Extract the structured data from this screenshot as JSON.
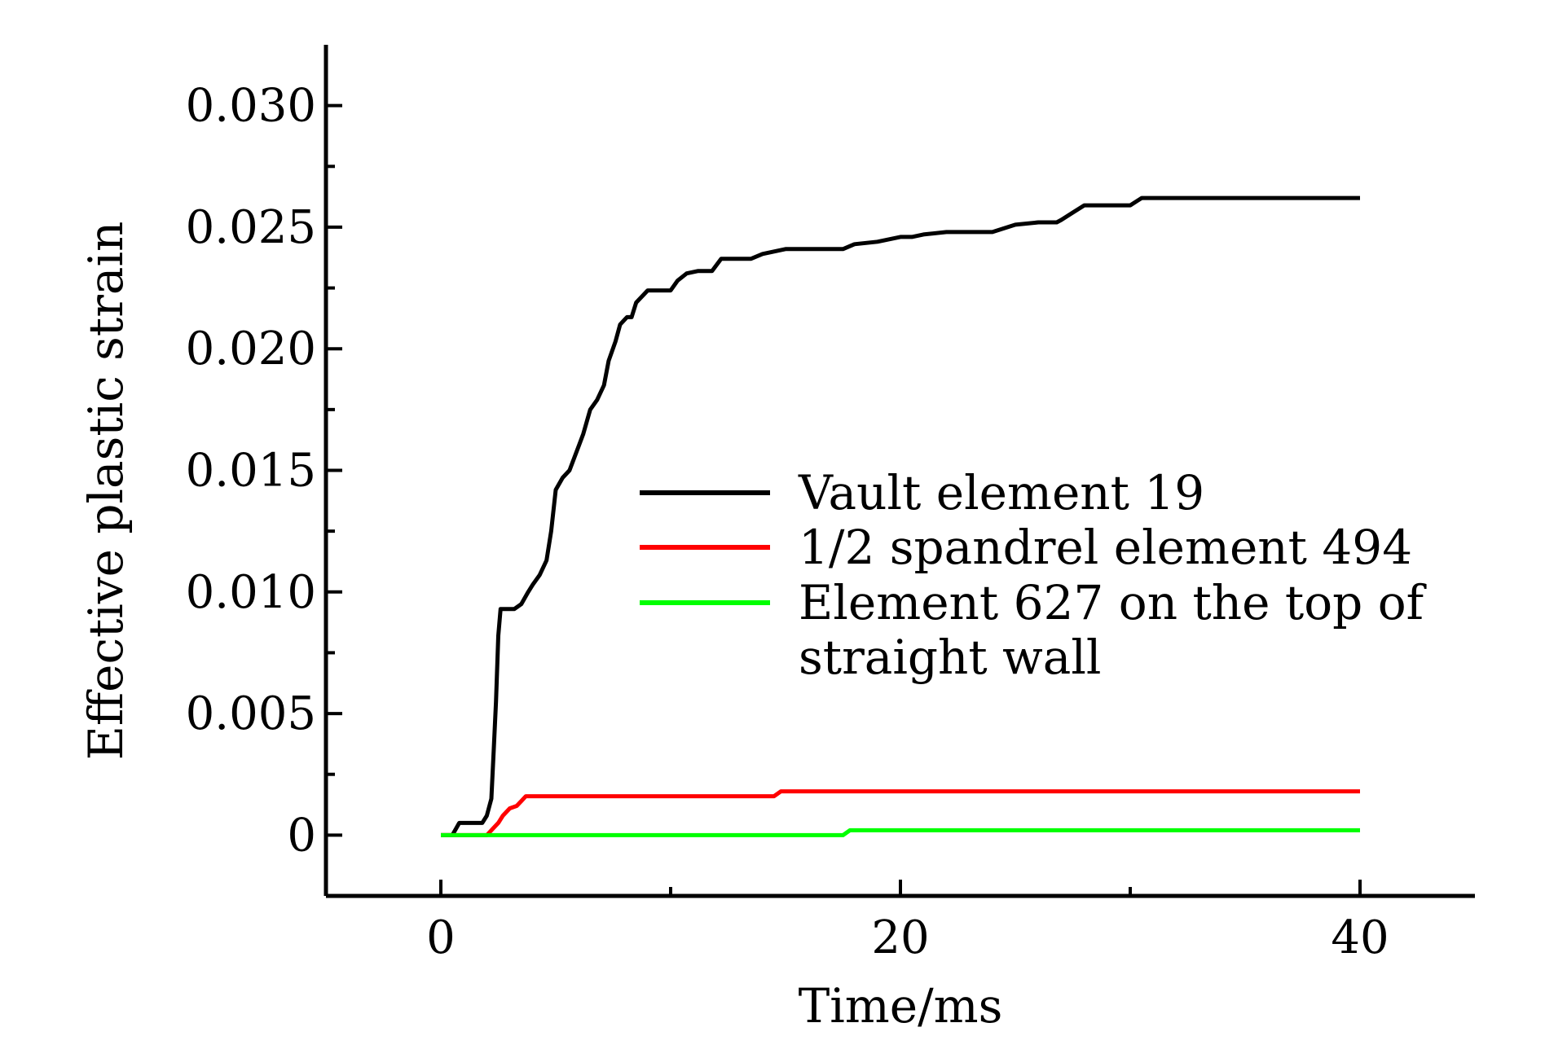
{
  "chart_data": {
    "type": "line",
    "title": "",
    "xlabel": "Time/ms",
    "ylabel": "Effective plastic strain",
    "xlim": [
      -5,
      45
    ],
    "ylim": [
      -0.0025,
      0.0325
    ],
    "xticks": [
      0,
      20,
      40
    ],
    "xtick_labels": [
      "0",
      "20",
      "40"
    ],
    "x_minor_ticks": [
      10,
      30
    ],
    "yticks": [
      0,
      0.005,
      0.01,
      0.015,
      0.02,
      0.025,
      0.03
    ],
    "ytick_labels": [
      "0",
      "0.005",
      "0.010",
      "0.015",
      "0.020",
      "0.025",
      "0.030"
    ],
    "y_minor_ticks": [
      -0.0025,
      0.0025,
      0.0075,
      0.0125,
      0.0175,
      0.0225,
      0.0275
    ],
    "grid": false,
    "legend_position": "center-right",
    "series": [
      {
        "name": "Vault element 19",
        "color": "#000000",
        "x": [
          0,
          0.5,
          0.8,
          1.8,
          2.0,
          2.2,
          2.3,
          2.4,
          2.5,
          2.6,
          2.8,
          3.2,
          3.5,
          3.8,
          4.0,
          4.3,
          4.6,
          4.8,
          5.0,
          5.3,
          5.6,
          6.0,
          6.2,
          6.5,
          6.8,
          7.1,
          7.3,
          7.6,
          7.8,
          8.1,
          8.3,
          8.5,
          9.0,
          10.0,
          10.3,
          10.7,
          11.2,
          11.8,
          12.2,
          13.0,
          13.5,
          14.0,
          15.0,
          17.5,
          18.0,
          19.0,
          20.0,
          20.5,
          21.0,
          22.0,
          23.5,
          24.0,
          25.0,
          26.0,
          26.8,
          27.0,
          27.5,
          28.0,
          30.0,
          30.5,
          40.0
        ],
        "y": [
          0,
          0,
          0.0005,
          0.0005,
          0.0008,
          0.0015,
          0.0035,
          0.0055,
          0.0082,
          0.0093,
          0.0093,
          0.0093,
          0.0095,
          0.01,
          0.0103,
          0.0107,
          0.0113,
          0.0125,
          0.0142,
          0.0147,
          0.015,
          0.016,
          0.0165,
          0.0175,
          0.0179,
          0.0185,
          0.0195,
          0.0203,
          0.021,
          0.0213,
          0.0213,
          0.0219,
          0.0224,
          0.0224,
          0.0228,
          0.0231,
          0.0232,
          0.0232,
          0.0237,
          0.0237,
          0.0237,
          0.0239,
          0.0241,
          0.0241,
          0.0243,
          0.0244,
          0.0246,
          0.0246,
          0.0247,
          0.0248,
          0.0248,
          0.0248,
          0.0251,
          0.0252,
          0.0252,
          0.0253,
          0.0256,
          0.0259,
          0.0259,
          0.0262,
          0.0262
        ]
      },
      {
        "name": "1/2 spandrel element 494",
        "color": "#ff0000",
        "x": [
          0,
          2.0,
          2.2,
          2.5,
          2.7,
          3.0,
          3.3,
          3.5,
          3.7,
          14.5,
          14.8,
          40.0
        ],
        "y": [
          0,
          0,
          0.0002,
          0.0005,
          0.0008,
          0.0011,
          0.0012,
          0.0014,
          0.0016,
          0.0016,
          0.0018,
          0.0018
        ]
      },
      {
        "name": "Element 627 on the top of straight wall",
        "legend_lines": [
          "Element 627 on the top of",
          "straight wall"
        ],
        "color": "#00ff00",
        "x": [
          0,
          17.5,
          17.8,
          40.0
        ],
        "y": [
          0,
          0,
          0.0002,
          0.0002
        ]
      }
    ]
  }
}
